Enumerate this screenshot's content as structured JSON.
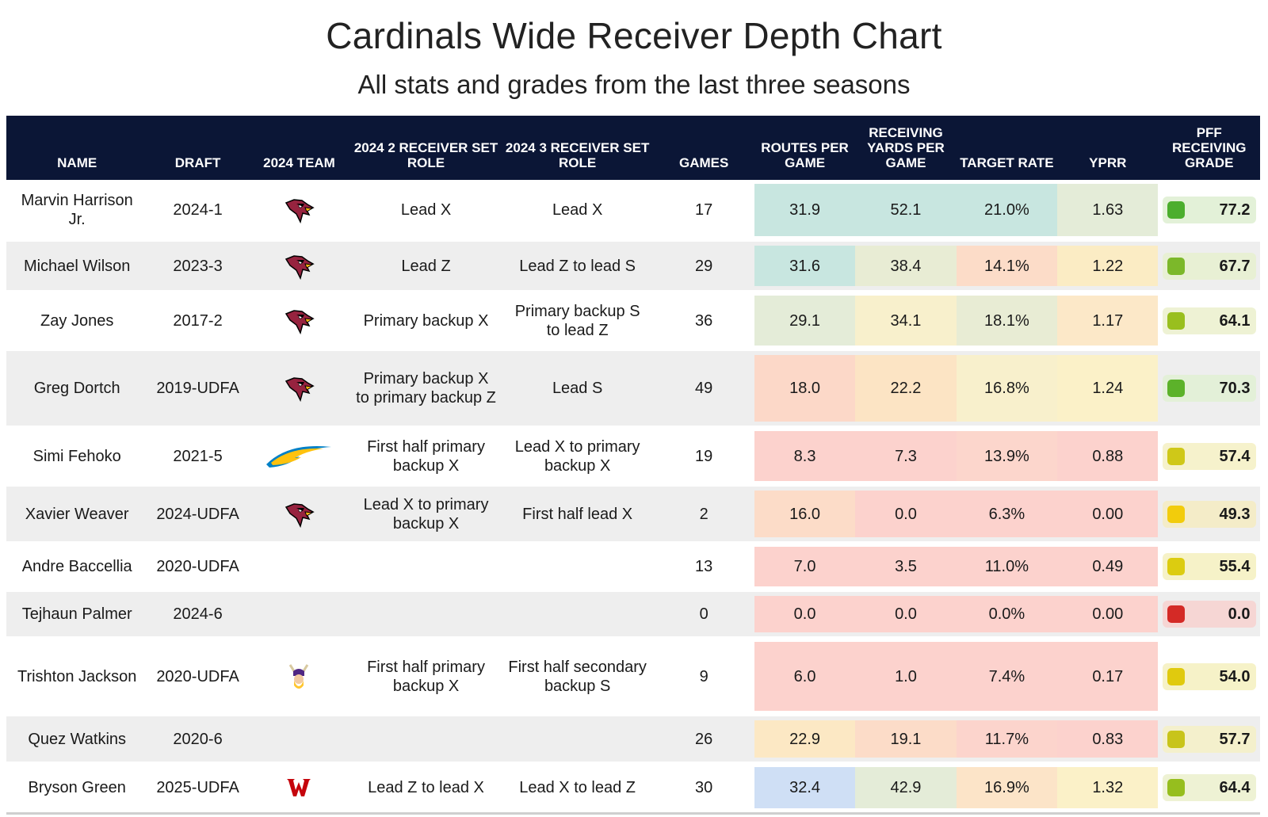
{
  "title": "Cardinals Wide Receiver Depth Chart",
  "subtitle": "All stats and grades from the last three seasons",
  "colors": {
    "header_bg": "#0b1636",
    "blue": "#cfdff5",
    "teal": "#c8e6e0",
    "green_light": "#e4ecd8",
    "yellow": "#fbf1c8",
    "peach": "#fce3cc",
    "red": "#fcd2cd"
  },
  "chart_data": {
    "type": "table",
    "columns": [
      "NAME",
      "DRAFT",
      "2024 TEAM",
      "2024 2 RECEIVER SET ROLE",
      "2024 3 RECEIVER SET ROLE",
      "GAMES",
      "ROUTES PER GAME",
      "RECEIVING YARDS PER GAME",
      "TARGET RATE",
      "YPRR",
      "PFF RECEIVING GRADE"
    ],
    "rows": [
      {
        "name": "Marvin Harrison Jr.",
        "draft": "2024-1",
        "team_icon": "cardinals-logo-icon",
        "role2": "Lead X",
        "role3": "Lead X",
        "games": "17",
        "routes": "31.9",
        "yards": "52.1",
        "target": "21.0%",
        "yprr": "1.63",
        "grade": "77.2",
        "routes_color": "#c8e6e0",
        "yards_color": "#c8e6e0",
        "target_color": "#c8e6e0",
        "yprr_color": "#e4ecd8",
        "grade_bg": "#e3f1d8",
        "grade_sq": "#4cae2e"
      },
      {
        "name": "Michael Wilson",
        "draft": "2023-3",
        "team_icon": "cardinals-logo-icon",
        "role2": "Lead Z",
        "role3": "Lead Z to lead S",
        "games": "29",
        "routes": "31.6",
        "yards": "38.4",
        "target": "14.1%",
        "yprr": "1.22",
        "grade": "67.7",
        "routes_color": "#c8e6e0",
        "yards_color": "#e8ecd4",
        "target_color": "#fcdcc8",
        "yprr_color": "#fbecc4",
        "grade_bg": "#e8f0d4",
        "grade_sq": "#7cb82a"
      },
      {
        "name": "Zay Jones",
        "draft": "2017-2",
        "team_icon": "cardinals-logo-icon",
        "role2": "Primary backup X",
        "role3": "Primary backup S to lead Z",
        "games": "36",
        "routes": "29.1",
        "yards": "34.1",
        "target": "18.1%",
        "yprr": "1.17",
        "grade": "64.1",
        "routes_color": "#e4ecd8",
        "yards_color": "#f8f0cc",
        "target_color": "#e8ecd4",
        "yprr_color": "#fce8c8",
        "grade_bg": "#eef2d4",
        "grade_sq": "#99bf1e"
      },
      {
        "name": "Greg Dortch",
        "draft": "2019-UDFA",
        "team_icon": "cardinals-logo-icon",
        "role2": "Primary backup X to primary backup Z",
        "role3": "Lead S",
        "games": "49",
        "routes": "18.0",
        "yards": "22.2",
        "target": "16.8%",
        "yprr": "1.24",
        "grade": "70.3",
        "routes_color": "#fcd8c8",
        "yards_color": "#fce4c4",
        "target_color": "#f8f0cc",
        "yprr_color": "#fbf1c8",
        "grade_bg": "#e3f0d8",
        "grade_sq": "#5cb22a"
      },
      {
        "name": "Simi Fehoko",
        "draft": "2021-5",
        "team_icon": "chargers-logo-icon",
        "role2": "First half primary backup X",
        "role3": "Lead X to primary backup X",
        "games": "19",
        "routes": "8.3",
        "yards": "7.3",
        "target": "13.9%",
        "yprr": "0.88",
        "grade": "57.4",
        "routes_color": "#fcd2cd",
        "yards_color": "#fcd2cd",
        "target_color": "#fcd6cc",
        "yprr_color": "#fcd2cd",
        "grade_bg": "#f6f2cc",
        "grade_sq": "#cfc818"
      },
      {
        "name": "Xavier Weaver",
        "draft": "2024-UDFA",
        "team_icon": "cardinals-logo-icon",
        "role2": "Lead X to primary backup X",
        "role3": "First half lead X",
        "games": "2",
        "routes": "16.0",
        "yards": "0.0",
        "target": "6.3%",
        "yprr": "0.00",
        "grade": "49.3",
        "routes_color": "#fcdcc8",
        "yards_color": "#fcd2cd",
        "target_color": "#fcd2cd",
        "yprr_color": "#fcd2cd",
        "grade_bg": "#f4ecc8",
        "grade_sq": "#f2cc0c"
      },
      {
        "name": "Andre Baccellia",
        "draft": "2020-UDFA",
        "team_icon": "",
        "role2": "",
        "role3": "",
        "games": "13",
        "routes": "7.0",
        "yards": "3.5",
        "target": "11.0%",
        "yprr": "0.49",
        "grade": "55.4",
        "routes_color": "#fcd2cd",
        "yards_color": "#fcd2cd",
        "target_color": "#fcd2cd",
        "yprr_color": "#fcd2cd",
        "grade_bg": "#f6f2c8",
        "grade_sq": "#dccc10"
      },
      {
        "name": "Tejhaun Palmer",
        "draft": "2024-6",
        "team_icon": "",
        "role2": "",
        "role3": "",
        "games": "0",
        "routes": "0.0",
        "yards": "0.0",
        "target": "0.0%",
        "yprr": "0.00",
        "grade": "0.0",
        "routes_color": "#fcd2cd",
        "yards_color": "#fcd2cd",
        "target_color": "#fcd2cd",
        "yprr_color": "#fcd2cd",
        "grade_bg": "#f6d6d4",
        "grade_sq": "#d42a26"
      },
      {
        "name": "Trishton Jackson",
        "draft": "2020-UDFA",
        "team_icon": "vikings-logo-icon",
        "role2": "First half primary backup X",
        "role3": "First half secondary backup S",
        "games": "9",
        "routes": "6.0",
        "yards": "1.0",
        "target": "7.4%",
        "yprr": "0.17",
        "grade": "54.0",
        "routes_color": "#fcd2cd",
        "yards_color": "#fcd2cd",
        "target_color": "#fcd2cd",
        "yprr_color": "#fcd2cd",
        "grade_bg": "#f6f2c8",
        "grade_sq": "#e0ca0e"
      },
      {
        "name": "Quez Watkins",
        "draft": "2020-6",
        "team_icon": "",
        "role2": "",
        "role3": "",
        "games": "26",
        "routes": "22.9",
        "yards": "19.1",
        "target": "11.7%",
        "yprr": "0.83",
        "grade": "57.7",
        "routes_color": "#fce8c4",
        "yards_color": "#fcdcc8",
        "target_color": "#fcd4cc",
        "yprr_color": "#fcd2cd",
        "grade_bg": "#f4f0cc",
        "grade_sq": "#c8c41a"
      },
      {
        "name": "Bryson Green",
        "draft": "2025-UDFA",
        "team_icon": "wisconsin-logo-icon",
        "role2": "Lead Z to lead X",
        "role3": "Lead X to lead Z",
        "games": "30",
        "routes": "32.4",
        "yards": "42.9",
        "target": "16.9%",
        "yprr": "1.32",
        "grade": "64.4",
        "routes_color": "#cfdff5",
        "yards_color": "#e4ecd8",
        "target_color": "#fce4c8",
        "yprr_color": "#fbf1c8",
        "grade_bg": "#eef2d4",
        "grade_sq": "#96be1e"
      }
    ]
  }
}
